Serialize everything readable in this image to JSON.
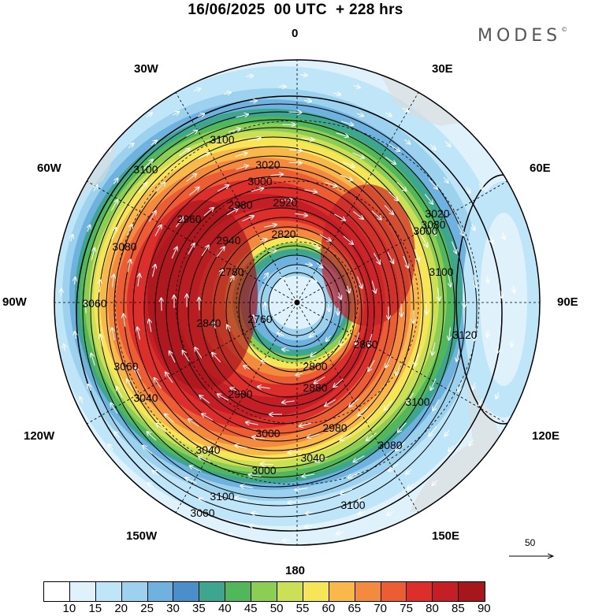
{
  "title": "16/06/2025  00 UTC  + 228 hrs",
  "brand": "MODES",
  "brand_mark": "©",
  "longitude_labels": [
    "0",
    "30E",
    "60E",
    "90E",
    "120E",
    "150E",
    "180",
    "150W",
    "120W",
    "90W",
    "60W",
    "30W"
  ],
  "contour_labels": [
    "3100",
    "3100",
    "3080",
    "3060",
    "3060",
    "3040",
    "3040",
    "3060",
    "3100",
    "3020",
    "3000",
    "2980",
    "2960",
    "2940",
    "2920",
    "2900",
    "2880",
    "2860",
    "2840",
    "2820",
    "2800",
    "2780",
    "2760",
    "3000",
    "2980",
    "3040",
    "3080",
    "3100",
    "3120",
    "3020",
    "3000",
    "3080",
    "3100",
    "3000",
    "3100"
  ],
  "reference_vector": "50",
  "legend": {
    "ticks": [
      "10",
      "15",
      "20",
      "25",
      "30",
      "35",
      "40",
      "45",
      "50",
      "55",
      "60",
      "65",
      "70",
      "75",
      "80",
      "85",
      "90"
    ],
    "colors": [
      "#ffffff",
      "#dff2fb",
      "#bfe6f8",
      "#9dd2ee",
      "#6fb2e0",
      "#4a8fc9",
      "#3ea58f",
      "#52b75a",
      "#8ccd53",
      "#cce055",
      "#f6e556",
      "#f8b94a",
      "#f48a3d",
      "#ec5d34",
      "#dc2f2c",
      "#c41f27",
      "#a8161d"
    ]
  }
}
